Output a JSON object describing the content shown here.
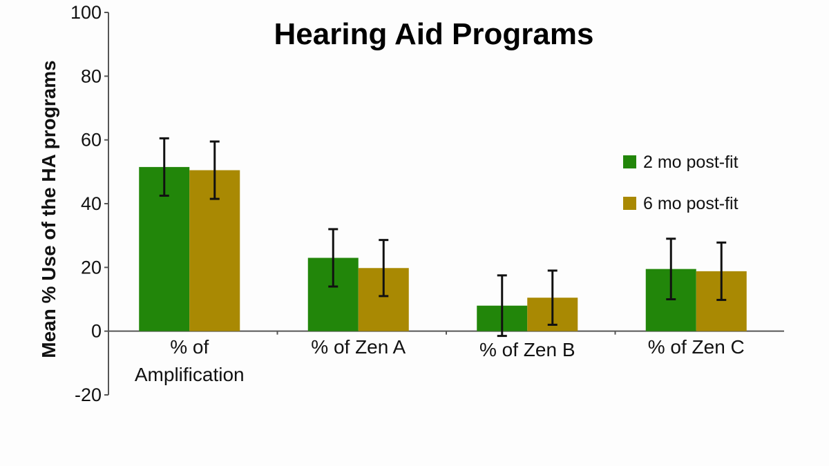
{
  "chart_data": {
    "type": "bar",
    "title": "Hearing Aid Programs",
    "ylabel": "Mean % Use of the HA programs",
    "xlabel": "",
    "ylim": [
      -20,
      100
    ],
    "yticks": [
      -20,
      0,
      20,
      40,
      60,
      80,
      100
    ],
    "categories": [
      "% of Amplification",
      "% of Zen A",
      "% of Zen B",
      "% of Zen C"
    ],
    "category_lines": [
      [
        "% of",
        "Amplification"
      ],
      [
        "% of Zen A"
      ],
      [
        "% of Zen B"
      ],
      [
        "% of Zen C"
      ]
    ],
    "series": [
      {
        "name": "2 mo post-fit",
        "color": "#22860a",
        "values": [
          51.5,
          23,
          8,
          19.5
        ],
        "error": [
          9,
          9,
          9.5,
          9.5
        ]
      },
      {
        "name": "6 mo post-fit",
        "color": "#a98903",
        "values": [
          50.5,
          19.8,
          10.5,
          18.8
        ],
        "error": [
          9,
          8.8,
          8.5,
          9
        ]
      }
    ],
    "legend_position": "right",
    "grid": false
  }
}
